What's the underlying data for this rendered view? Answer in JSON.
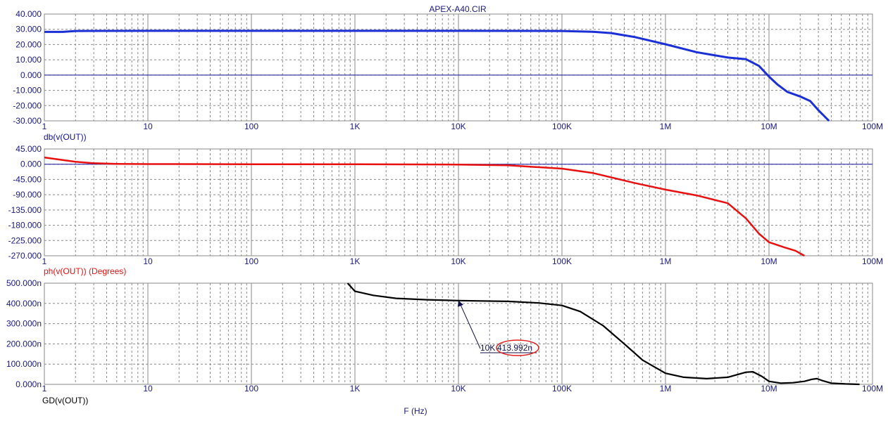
{
  "colors": {
    "grid": "#8a8a8a",
    "zero_line": "#1010a0",
    "gain": "#1a2fd6",
    "phase": "#e81010",
    "group_delay": "#000000",
    "gain_label": "#1010a0",
    "phase_label": "#e81010",
    "text": "#1a1a80",
    "marker": "#10104a",
    "highlight": "#e02020"
  },
  "title": "APEX-A40.CIR",
  "x_axis_label": "F (Hz)",
  "chart_data": [
    {
      "type": "line",
      "name": "gain",
      "ylabel": "db(v(OUT))",
      "xscale": "log",
      "xlim": [
        1,
        100000000
      ],
      "ylim": [
        -30,
        40
      ],
      "x_tick_labels": [
        "1",
        "10",
        "100",
        "1K",
        "10K",
        "100K",
        "1M",
        "10M",
        "100M"
      ],
      "y_tick_labels": [
        "40.000",
        "30.000",
        "20.000",
        "10.000",
        "0.000",
        "-10.000",
        "-20.000",
        "-30.000"
      ],
      "zero_line": 0,
      "series": [
        {
          "x": [
            1,
            1.5,
            2,
            10,
            100,
            1000,
            10000,
            100000,
            200000,
            300000,
            500000,
            1000000,
            2000000,
            4000000,
            6000000,
            8000000,
            10000000,
            12000000,
            15000000,
            20000000,
            25000000,
            30000000,
            38000000
          ],
          "y": [
            28.3,
            28.3,
            28.9,
            29,
            29,
            29,
            29,
            28.9,
            28.4,
            27.5,
            25,
            20.2,
            15,
            11.5,
            10.4,
            6,
            -1,
            -6,
            -11,
            -14,
            -17,
            -23,
            -30
          ]
        }
      ]
    },
    {
      "type": "line",
      "name": "phase",
      "ylabel": "ph(v(OUT)) (Degrees)",
      "xscale": "log",
      "xlim": [
        1,
        100000000
      ],
      "ylim": [
        -270,
        45
      ],
      "y_tick_labels": [
        "45.000",
        "0.000",
        "-45.000",
        "-90.000",
        "-135.000",
        "-180.000",
        "-225.000",
        "-270.000"
      ],
      "zero_line": 0,
      "series": [
        {
          "x": [
            1,
            2,
            3,
            5,
            10,
            100,
            1000,
            10000,
            30000,
            100000,
            200000,
            500000,
            1000000,
            2000000,
            4000000,
            6000000,
            8000000,
            10000000,
            14000000,
            18000000,
            22000000
          ],
          "y": [
            20,
            7,
            3,
            1,
            0.5,
            0,
            0,
            -1,
            -3,
            -13,
            -26,
            -55,
            -75,
            -92,
            -115,
            -160,
            -205,
            -230,
            -245,
            -255,
            -270
          ]
        }
      ]
    },
    {
      "type": "line",
      "name": "group_delay",
      "ylabel": "GD(v(OUT))",
      "xscale": "log",
      "xlim": [
        1,
        100000000
      ],
      "ylim": [
        0,
        500
      ],
      "y_tick_labels": [
        "500.000n",
        "400.000n",
        "300.000n",
        "200.000n",
        "100.000n",
        "0.000n"
      ],
      "x_tick_labels": [
        "1",
        "10",
        "100",
        "1K",
        "10K",
        "100K",
        "1M",
        "10M",
        "100M"
      ],
      "series": [
        {
          "x": [
            850,
            1000,
            1500,
            2500,
            5000,
            10000,
            30000,
            60000,
            100000,
            150000,
            250000,
            400000,
            600000,
            1000000,
            1500000,
            2500000,
            4000000,
            6000000,
            7000000,
            8500000,
            10000000,
            13000000,
            17000000,
            22000000,
            26000000,
            29000000,
            33000000,
            40000000,
            55000000,
            75000000
          ],
          "y": [
            500,
            460,
            440,
            425,
            418,
            414,
            410,
            402,
            390,
            360,
            290,
            200,
            120,
            55,
            35,
            28,
            35,
            60,
            62,
            40,
            15,
            6,
            8,
            15,
            25,
            28,
            18,
            6,
            2,
            0
          ]
        }
      ],
      "annotation": {
        "x_label": "10K",
        "value_label": "413.992n",
        "x": 10000,
        "y": 413.992
      }
    }
  ]
}
